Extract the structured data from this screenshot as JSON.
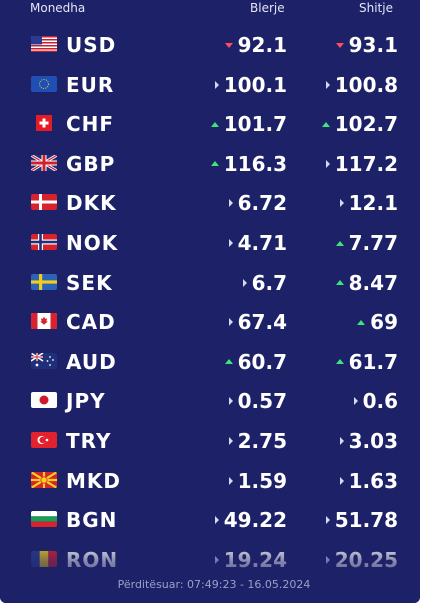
{
  "header": {
    "currency_label": "Monedha",
    "buy_label": "Blerje",
    "sell_label": "Shitje"
  },
  "rows": [
    {
      "code": "USD",
      "flag_icon": "us-flag-icon",
      "buy": "92.1",
      "buy_trend": "down",
      "sell": "93.1",
      "sell_trend": "down"
    },
    {
      "code": "EUR",
      "flag_icon": "eu-flag-icon",
      "buy": "100.1",
      "buy_trend": "same",
      "sell": "100.8",
      "sell_trend": "same"
    },
    {
      "code": "CHF",
      "flag_icon": "ch-flag-icon",
      "buy": "101.7",
      "buy_trend": "up",
      "sell": "102.7",
      "sell_trend": "up"
    },
    {
      "code": "GBP",
      "flag_icon": "gb-flag-icon",
      "buy": "116.3",
      "buy_trend": "up",
      "sell": "117.2",
      "sell_trend": "same"
    },
    {
      "code": "DKK",
      "flag_icon": "dk-flag-icon",
      "buy": "6.72",
      "buy_trend": "same",
      "sell": "12.1",
      "sell_trend": "same"
    },
    {
      "code": "NOK",
      "flag_icon": "no-flag-icon",
      "buy": "4.71",
      "buy_trend": "same",
      "sell": "7.77",
      "sell_trend": "up"
    },
    {
      "code": "SEK",
      "flag_icon": "se-flag-icon",
      "buy": "6.7",
      "buy_trend": "same",
      "sell": "8.47",
      "sell_trend": "up"
    },
    {
      "code": "CAD",
      "flag_icon": "ca-flag-icon",
      "buy": "67.4",
      "buy_trend": "same",
      "sell": "69",
      "sell_trend": "up"
    },
    {
      "code": "AUD",
      "flag_icon": "au-flag-icon",
      "buy": "60.7",
      "buy_trend": "up",
      "sell": "61.7",
      "sell_trend": "up"
    },
    {
      "code": "JPY",
      "flag_icon": "jp-flag-icon",
      "buy": "0.57",
      "buy_trend": "same",
      "sell": "0.6",
      "sell_trend": "same"
    },
    {
      "code": "TRY",
      "flag_icon": "tr-flag-icon",
      "buy": "2.75",
      "buy_trend": "same",
      "sell": "3.03",
      "sell_trend": "same"
    },
    {
      "code": "MKD",
      "flag_icon": "mk-flag-icon",
      "buy": "1.59",
      "buy_trend": "same",
      "sell": "1.63",
      "sell_trend": "same"
    },
    {
      "code": "BGN",
      "flag_icon": "bg-flag-icon",
      "buy": "49.22",
      "buy_trend": "same",
      "sell": "51.78",
      "sell_trend": "same"
    },
    {
      "code": "RON",
      "flag_icon": "ro-flag-icon",
      "buy": "19.24",
      "buy_trend": "same",
      "sell": "20.25",
      "sell_trend": "same"
    }
  ],
  "footer": {
    "updated_text": "Përditësuar: 07:49:23 - 16.05.2024"
  },
  "colors": {
    "panel_bg": "#1d2167",
    "up": "#3ee47c",
    "down": "#ff4d5e",
    "same": "#d6d9ef"
  }
}
